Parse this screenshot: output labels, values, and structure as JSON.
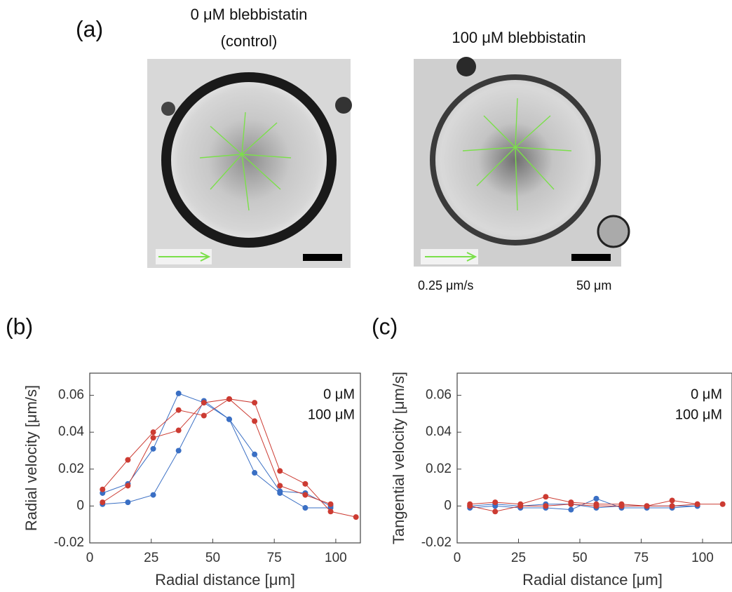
{
  "panel_a": {
    "label": "(a)",
    "left_title": "0  μM blebbistatin",
    "left_subtitle": "(control)",
    "right_title": "100 μM blebbistatin",
    "velocity_scale": "0.25 μm/s",
    "length_scale": "50 μm"
  },
  "chart_data": [
    {
      "type": "line",
      "panel_label": "(b)",
      "x_label": "Radial distance [μm]",
      "y_label": "Radial velocity [μm/s]",
      "xlim": [
        0,
        110
      ],
      "ylim": [
        -0.02,
        0.072
      ],
      "xticks": [
        0,
        25,
        50,
        75,
        100
      ],
      "yticks": [
        -0.02,
        0,
        0.02,
        0.04,
        0.06
      ],
      "legend": "upper right",
      "series": [
        {
          "name": "0 μM",
          "color": "#3a6fc4",
          "x": [
            5.2,
            15.5,
            25.8,
            36.1,
            46.4,
            56.7,
            67,
            77.3,
            87.6,
            97.9
          ],
          "values": [
            0.007,
            0.012,
            0.031,
            0.061,
            0.056,
            0.047,
            0.018,
            0.007,
            -0.001,
            -0.001
          ]
        },
        {
          "color": "#3a6fc4",
          "x": [
            5.2,
            15.5,
            25.8,
            36.1,
            46.4,
            56.7,
            67,
            77.3,
            87.6,
            97.9
          ],
          "values": [
            0.001,
            0.002,
            0.006,
            0.03,
            0.057,
            0.047,
            0.028,
            0.008,
            0.007,
            0.0
          ]
        },
        {
          "name": "100 μM",
          "color": "#cc3b32",
          "x": [
            5.2,
            15.5,
            25.8,
            36.1,
            46.4,
            56.7,
            67,
            77.3,
            87.6,
            97.9,
            108.2
          ],
          "values": [
            0.009,
            0.025,
            0.04,
            0.052,
            0.049,
            0.058,
            0.056,
            0.019,
            0.012,
            -0.003,
            -0.006
          ]
        },
        {
          "color": "#cc3b32",
          "x": [
            5.2,
            15.5,
            25.8,
            36.1,
            46.4,
            56.7,
            67,
            77.3,
            87.6,
            97.9
          ],
          "values": [
            0.002,
            0.011,
            0.037,
            0.041,
            0.056,
            0.058,
            0.046,
            0.011,
            0.006,
            0.001
          ]
        }
      ]
    },
    {
      "type": "line",
      "panel_label": "(c)",
      "x_label": "Radial distance [μm]",
      "y_label": "Tangential velocity [μm/s]",
      "xlim": [
        0,
        112
      ],
      "ylim": [
        -0.02,
        0.072
      ],
      "xticks": [
        0,
        25,
        50,
        75,
        100
      ],
      "yticks": [
        -0.02,
        0,
        0.02,
        0.04,
        0.06
      ],
      "legend": "upper right",
      "series": [
        {
          "name": "0 μM",
          "color": "#3a6fc4",
          "x": [
            5.2,
            15.5,
            25.8,
            36.1,
            46.4,
            56.7,
            67,
            77.3,
            87.6,
            97.9
          ],
          "values": [
            -0.001,
            0.0,
            -0.001,
            -0.001,
            -0.002,
            0.004,
            -0.001,
            -0.001,
            -0.001,
            0.0
          ]
        },
        {
          "color": "#3a6fc4",
          "x": [
            5.2,
            15.5,
            25.8,
            36.1,
            46.4,
            56.7,
            67,
            77.3,
            87.6,
            97.9
          ],
          "values": [
            0.0,
            0.001,
            0.0,
            0.001,
            0.001,
            -0.001,
            0.0,
            0.0,
            0.0,
            0.0
          ]
        },
        {
          "name": "100 μM",
          "color": "#cc3b32",
          "x": [
            5.2,
            15.5,
            25.8,
            36.1,
            46.4,
            56.7,
            67,
            77.3,
            87.6,
            97.9,
            108.2
          ],
          "values": [
            0.001,
            0.002,
            0.001,
            0.005,
            0.002,
            0.001,
            0.001,
            0.0,
            0.003,
            0.001,
            0.001
          ]
        },
        {
          "color": "#cc3b32",
          "x": [
            5.2,
            15.5,
            25.8,
            36.1,
            46.4,
            56.7,
            67,
            77.3,
            87.6,
            97.9
          ],
          "values": [
            0.0,
            -0.003,
            0.0,
            0.0,
            0.001,
            0.0,
            0.0,
            0.0,
            0.0,
            0.001
          ]
        }
      ]
    }
  ]
}
